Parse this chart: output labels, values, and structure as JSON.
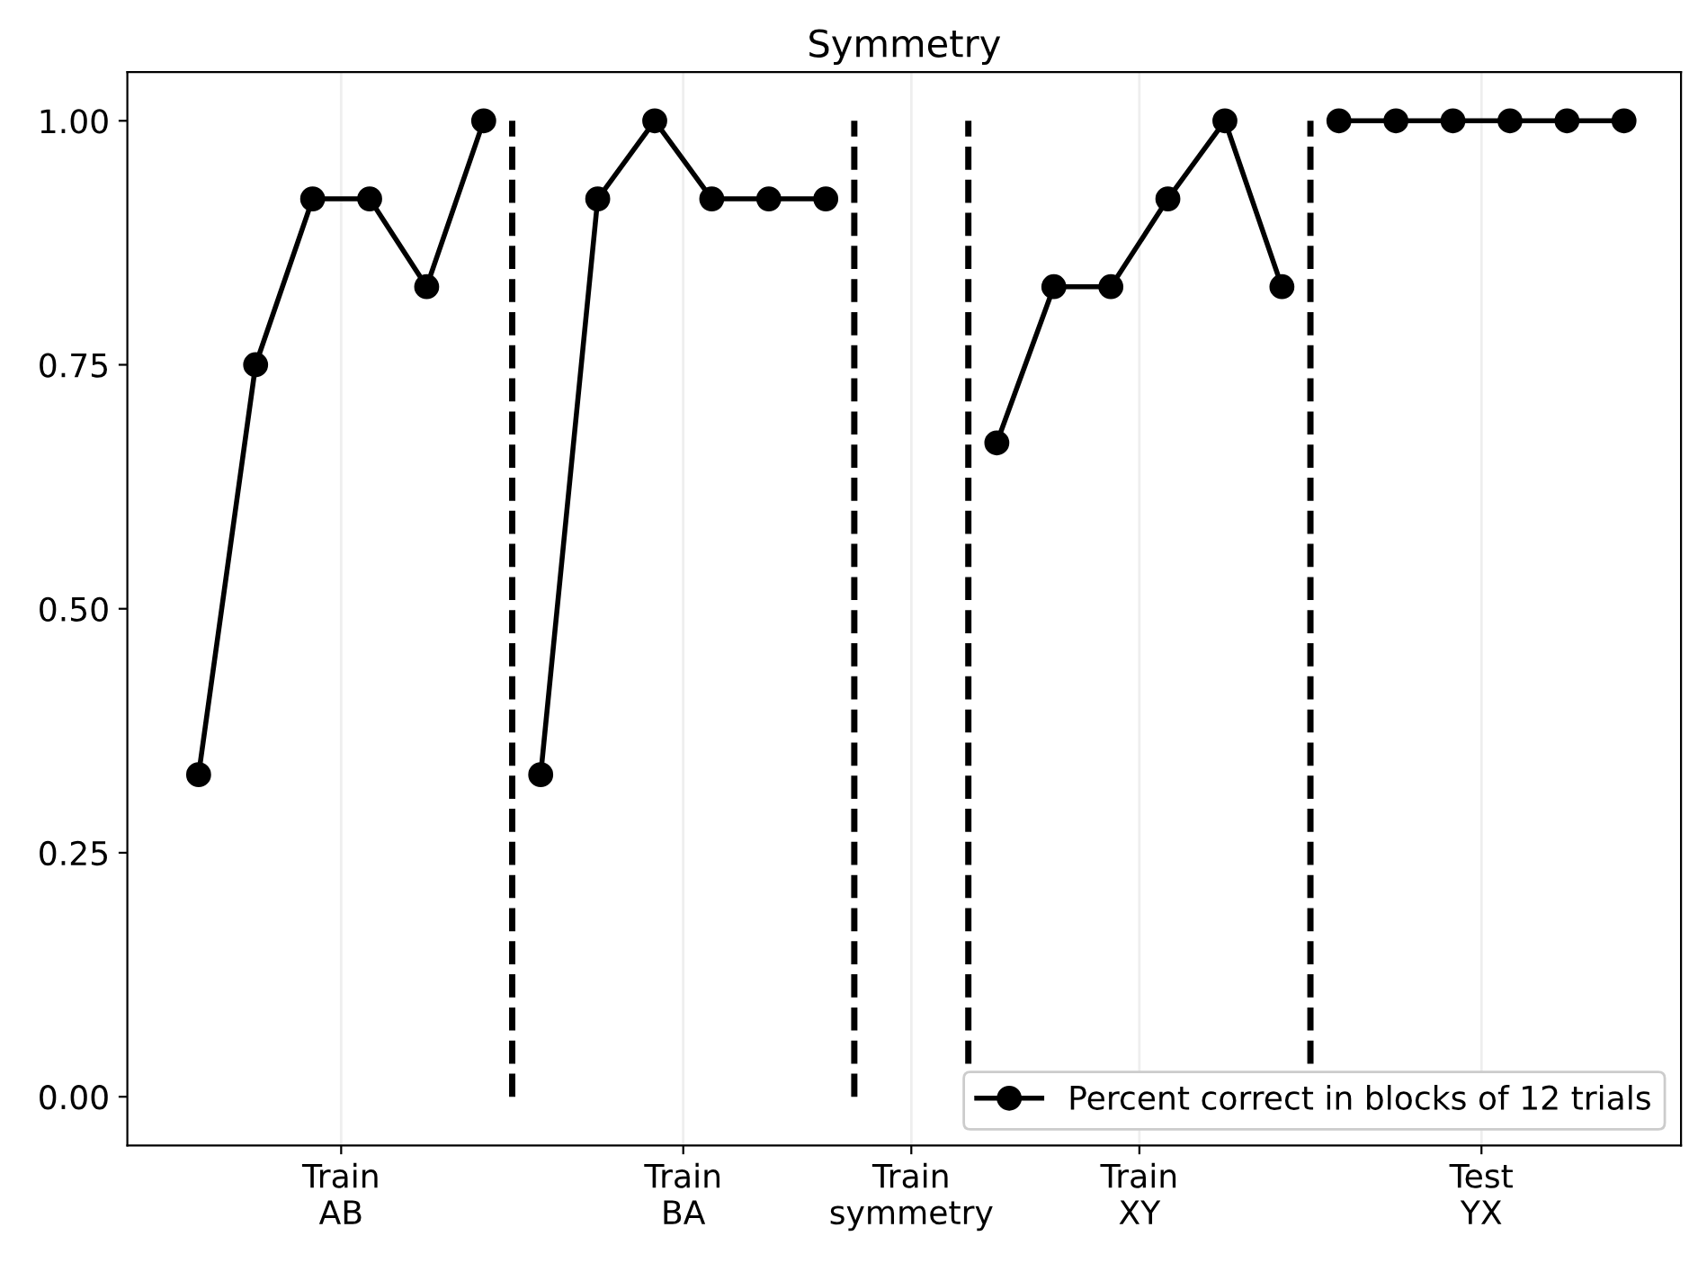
{
  "chart_data": {
    "type": "line",
    "title": "Symmetry",
    "categories": [
      null,
      null,
      null,
      null,
      null,
      "Train\nAB",
      null,
      null,
      null,
      null,
      null,
      null,
      null,
      null,
      null,
      null,
      null,
      "Train\nBA",
      null,
      null,
      null,
      null,
      null,
      null,
      null,
      "Train\nsymmetry",
      null,
      null,
      null,
      null,
      null,
      null,
      null,
      "Train\nXY",
      null,
      null,
      null,
      null,
      null,
      null,
      null,
      null,
      null,
      null,
      null,
      "Test\nYX",
      null,
      null,
      null,
      null,
      null
    ],
    "series": [
      {
        "name": "Percent correct in blocks of 12 trials",
        "color": "#000000",
        "values": [
          0.33,
          null,
          0.75,
          null,
          0.92,
          null,
          0.92,
          null,
          0.83,
          null,
          1.0,
          null,
          null,
          null,
          null,
          null,
          null,
          null,
          null,
          null,
          null,
          null,
          null,
          null,
          null,
          null,
          null,
          null,
          null,
          null,
          null,
          null,
          null,
          null,
          null,
          null,
          null,
          null,
          null,
          null,
          null,
          null,
          null,
          null,
          null,
          null,
          null,
          null,
          null,
          null,
          null
        ]
      },
      {
        "color": "#000000",
        "values": [
          null,
          null,
          null,
          null,
          null,
          null,
          null,
          null,
          null,
          null,
          null,
          null,
          0.33,
          null,
          0.92,
          null,
          1.0,
          null,
          0.92,
          null,
          0.92,
          null,
          0.92,
          null,
          null,
          null,
          null,
          null,
          null,
          null,
          null,
          null,
          null,
          null,
          null,
          null,
          null,
          null,
          null,
          null,
          null,
          null,
          null,
          null,
          null,
          null,
          null,
          null,
          null,
          null,
          null
        ]
      },
      {
        "color": "#000000",
        "values": [
          null,
          null,
          null,
          null,
          null,
          null,
          null,
          null,
          null,
          null,
          null,
          null,
          null,
          null,
          null,
          null,
          null,
          null,
          null,
          null,
          null,
          null,
          null,
          null,
          null,
          null,
          null,
          null,
          0.67,
          null,
          0.83,
          null,
          0.83,
          null,
          0.92,
          null,
          1.0,
          null,
          0.83,
          null,
          null,
          null,
          null,
          null,
          null,
          null,
          null,
          null,
          null,
          null,
          null
        ]
      },
      {
        "color": "#000000",
        "values": [
          null,
          null,
          null,
          null,
          null,
          null,
          null,
          null,
          null,
          null,
          null,
          null,
          null,
          null,
          null,
          null,
          null,
          null,
          null,
          null,
          null,
          null,
          null,
          null,
          null,
          null,
          null,
          null,
          null,
          null,
          null,
          null,
          null,
          null,
          null,
          null,
          null,
          null,
          null,
          null,
          1.0,
          null,
          1.0,
          null,
          1.0,
          null,
          1.0,
          null,
          1.0,
          null,
          1.0
        ]
      }
    ],
    "marker": "circle",
    "line_style": "solid",
    "ylim": [
      -0.05,
      1.05
    ],
    "yticks": [
      {
        "value": 0,
        "label": "0.00"
      },
      {
        "value": 0.25,
        "label": "0.25"
      },
      {
        "value": 0.5,
        "label": "0.50"
      },
      {
        "value": 0.75,
        "label": "0.75"
      },
      {
        "value": 1.0,
        "label": "1.00"
      }
    ],
    "grid": "x",
    "legend": "bottom right"
  }
}
